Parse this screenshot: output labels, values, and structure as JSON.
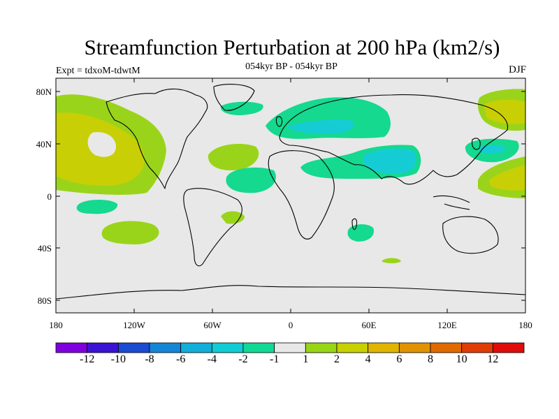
{
  "title": "Streamfunction Perturbation at 200 hPa (km2/s)",
  "subtitle": "054kyr BP - 054kyr BP",
  "left_label": "Expt = tdxoM-tdwtM",
  "right_label": "DJF",
  "lat_ticks": [
    "80N",
    "40N",
    "0",
    "40S",
    "80S"
  ],
  "lon_ticks": [
    "180",
    "120W",
    "60W",
    "0",
    "60E",
    "120E",
    "180"
  ],
  "colorbar": {
    "labels": [
      "-12",
      "-10",
      "-8",
      "-6",
      "-4",
      "-2",
      "-1",
      "1",
      "2",
      "4",
      "6",
      "8",
      "10",
      "12"
    ],
    "colors": [
      "#7f00df",
      "#3b13d4",
      "#1a4bd1",
      "#1585d6",
      "#11aed9",
      "#10ccd4",
      "#12d895",
      "#e8e8e8",
      "#97d614",
      "#c8d000",
      "#e0b400",
      "#e19200",
      "#e16a00",
      "#e03c05",
      "#e00c0c"
    ]
  },
  "colors": {
    "ocean": "#e8e8e8",
    "green_light": "#9ad41a",
    "yellow": "#c8cf05",
    "green_mid": "#14d98f",
    "cyan": "#16ccd4",
    "coast": "#000000"
  }
}
